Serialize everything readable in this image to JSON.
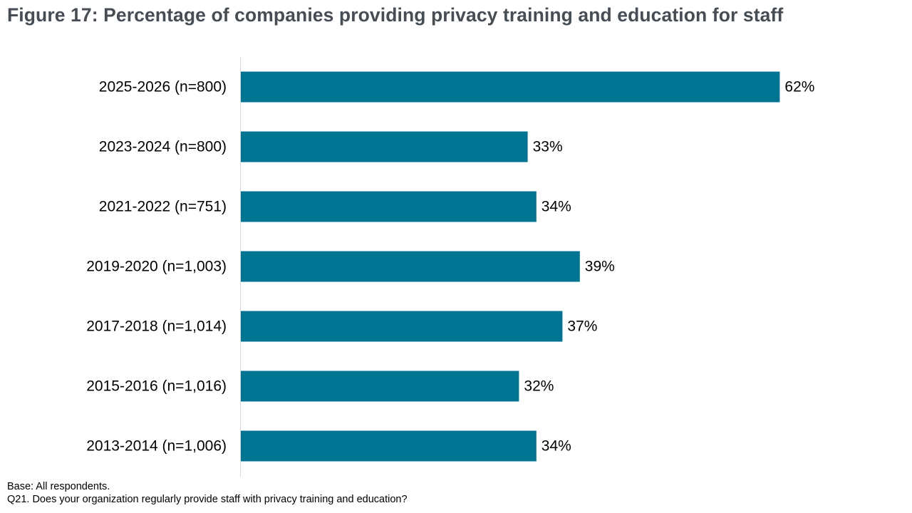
{
  "title": "Figure 17: Percentage of companies providing privacy training and education for staff",
  "notes": {
    "base": "Base: All respondents.",
    "question": "Q21. Does your organization regularly provide staff with privacy training and education?"
  },
  "colors": {
    "bar": "#007493",
    "axis": "#d9d9d9",
    "title": "#464d54"
  },
  "chart_data": {
    "type": "bar",
    "orientation": "horizontal",
    "categories": [
      "2025-2026 (n=800)",
      "2023-2024 (n=800)",
      "2021-2022 (n=751)",
      "2019-2020 (n=1,003)",
      "2017-2018 (n=1,014)",
      "2015-2016 (n=1,016)",
      "2013-2014 (n=1,006)"
    ],
    "values": [
      62,
      33,
      34,
      39,
      37,
      32,
      34
    ],
    "data_labels": [
      "62%",
      "33%",
      "34%",
      "39%",
      "37%",
      "32%",
      "34%"
    ],
    "unit": "%",
    "xlim": [
      0,
      70
    ],
    "grid": false,
    "legend": "none"
  }
}
